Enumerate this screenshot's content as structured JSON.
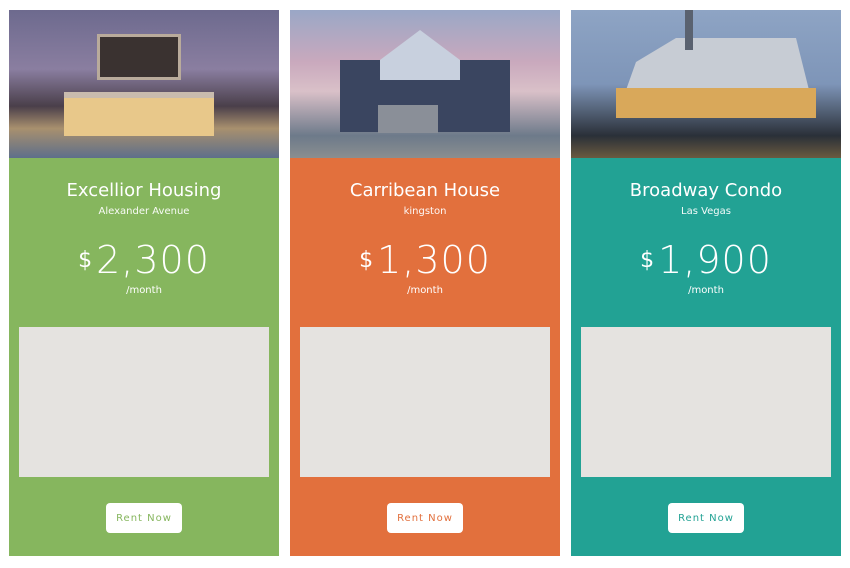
{
  "cards": [
    {
      "title": "Excellior Housing",
      "location": "Alexander Avenue",
      "currency": "$",
      "price": "2,300",
      "period": "/month",
      "button": "Rent Now",
      "color": "#86b65e",
      "image": "modern-house-at-dusk"
    },
    {
      "title": "Carribean House",
      "location": "kingston",
      "currency": "$",
      "price": "1,300",
      "period": "/month",
      "button": "Rent Now",
      "color": "#e2703d",
      "image": "suburban-house"
    },
    {
      "title": "Broadway Condo",
      "location": "Las Vegas",
      "currency": "$",
      "price": "1,900",
      "period": "/month",
      "button": "Rent Now",
      "color": "#22a294",
      "image": "waterfront-hall-at-night"
    }
  ]
}
